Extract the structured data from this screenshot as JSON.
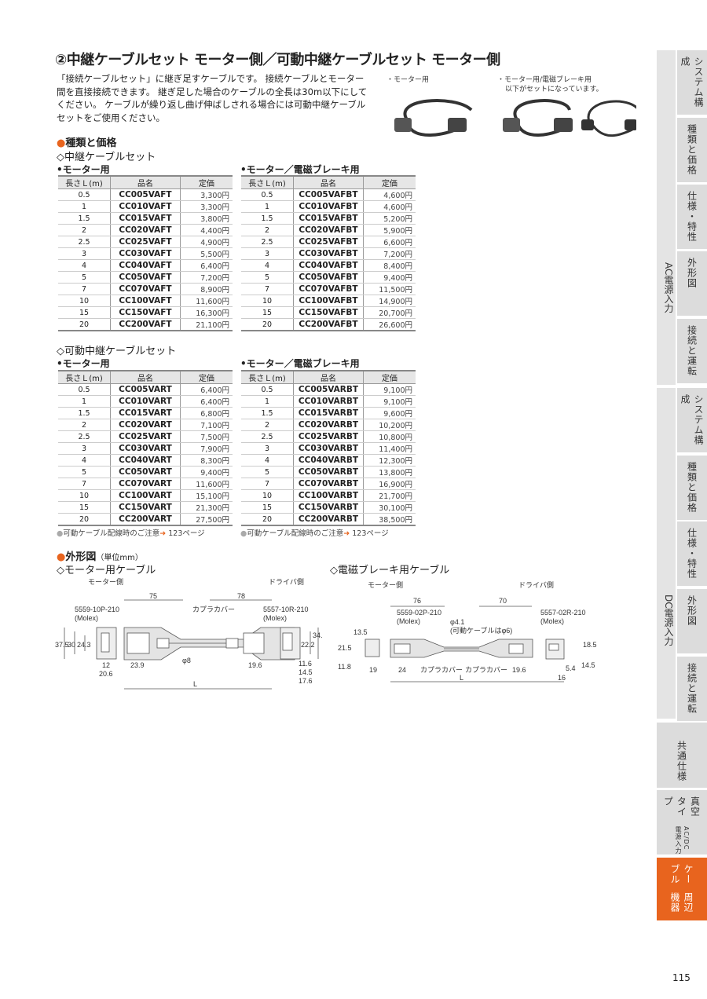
{
  "title": "②中継ケーブルセット モーター側／可動中継ケーブルセット モーター側",
  "intro": "「接続ケーブルセット」に継ぎ足すケーブルです。 接続ケーブルとモーター間を直接接続できます。 継ぎ足した場合のケーブルの全長は30m以下にしてください。 ケーブルが繰り返し曲げ伸ばしされる場合には可動中継ケーブルセットをご使用ください。",
  "photos": {
    "caption1": "・モーター用",
    "caption2a": "・モーター用/電磁ブレーキ用",
    "caption2b": "以下がセットになっています。"
  },
  "section_price": "種類と価格",
  "relay": {
    "heading": "◇中継ケーブルセット",
    "motor_label": "•モーター用",
    "brake_label": "•モーター／電磁ブレーキ用"
  },
  "movable": {
    "heading": "◇可動中継ケーブルセット",
    "motor_label": "•モーター用",
    "brake_label": "•モーター／電磁ブレーキ用"
  },
  "table_headers": [
    "長さＬ(m)",
    "品名",
    "定価"
  ],
  "tables": {
    "relay_motor": [
      [
        "0.5",
        "CC005VAFT",
        "3,300円"
      ],
      [
        "1",
        "CC010VAFT",
        "3,300円"
      ],
      [
        "1.5",
        "CC015VAFT",
        "3,800円"
      ],
      [
        "2",
        "CC020VAFT",
        "4,400円"
      ],
      [
        "2.5",
        "CC025VAFT",
        "4,900円"
      ],
      [
        "3",
        "CC030VAFT",
        "5,500円"
      ],
      [
        "4",
        "CC040VAFT",
        "6,400円"
      ],
      [
        "5",
        "CC050VAFT",
        "7,200円"
      ],
      [
        "7",
        "CC070VAFT",
        "8,900円"
      ],
      [
        "10",
        "CC100VAFT",
        "11,600円"
      ],
      [
        "15",
        "CC150VAFT",
        "16,300円"
      ],
      [
        "20",
        "CC200VAFT",
        "21,100円"
      ]
    ],
    "relay_brake": [
      [
        "0.5",
        "CC005VAFBT",
        "4,600円"
      ],
      [
        "1",
        "CC010VAFBT",
        "4,600円"
      ],
      [
        "1.5",
        "CC015VAFBT",
        "5,200円"
      ],
      [
        "2",
        "CC020VAFBT",
        "5,900円"
      ],
      [
        "2.5",
        "CC025VAFBT",
        "6,600円"
      ],
      [
        "3",
        "CC030VAFBT",
        "7,200円"
      ],
      [
        "4",
        "CC040VAFBT",
        "8,400円"
      ],
      [
        "5",
        "CC050VAFBT",
        "9,400円"
      ],
      [
        "7",
        "CC070VAFBT",
        "11,500円"
      ],
      [
        "10",
        "CC100VAFBT",
        "14,900円"
      ],
      [
        "15",
        "CC150VAFBT",
        "20,700円"
      ],
      [
        "20",
        "CC200VAFBT",
        "26,600円"
      ]
    ],
    "movable_motor": [
      [
        "0.5",
        "CC005VART",
        "6,400円"
      ],
      [
        "1",
        "CC010VART",
        "6,400円"
      ],
      [
        "1.5",
        "CC015VART",
        "6,800円"
      ],
      [
        "2",
        "CC020VART",
        "7,100円"
      ],
      [
        "2.5",
        "CC025VART",
        "7,500円"
      ],
      [
        "3",
        "CC030VART",
        "7,900円"
      ],
      [
        "4",
        "CC040VART",
        "8,300円"
      ],
      [
        "5",
        "CC050VART",
        "9,400円"
      ],
      [
        "7",
        "CC070VART",
        "11,600円"
      ],
      [
        "10",
        "CC100VART",
        "15,100円"
      ],
      [
        "15",
        "CC150VART",
        "21,300円"
      ],
      [
        "20",
        "CC200VART",
        "27,500円"
      ]
    ],
    "movable_brake": [
      [
        "0.5",
        "CC005VARBT",
        "9,100円"
      ],
      [
        "1",
        "CC010VARBT",
        "9,100円"
      ],
      [
        "1.5",
        "CC015VARBT",
        "9,600円"
      ],
      [
        "2",
        "CC020VARBT",
        "10,200円"
      ],
      [
        "2.5",
        "CC025VARBT",
        "10,800円"
      ],
      [
        "3",
        "CC030VARBT",
        "11,400円"
      ],
      [
        "4",
        "CC040VARBT",
        "12,300円"
      ],
      [
        "5",
        "CC050VARBT",
        "13,800円"
      ],
      [
        "7",
        "CC070VARBT",
        "16,900円"
      ],
      [
        "10",
        "CC100VARBT",
        "21,700円"
      ],
      [
        "15",
        "CC150VARBT",
        "30,100円"
      ],
      [
        "20",
        "CC200VARBT",
        "38,500円"
      ]
    ]
  },
  "note": {
    "text": "可動ケーブル配線時のご注意",
    "page": "123ページ"
  },
  "section_dims": "外形図",
  "dims_unit": "（単位mm）",
  "dim1": {
    "heading": "◇モーター用ケーブル",
    "motor_side": "モーター側",
    "driver_side": "ドライバ側",
    "d75": "75",
    "d78": "78",
    "conn_l": "5559-10P-210",
    "molex": "(Molex)",
    "cover": "カプラカバー",
    "conn_r": "5557-10R-210",
    "d375": "37.5",
    "d30": "30",
    "d243": "24.3",
    "d12": "12",
    "d206": "20.6",
    "d239": "23.9",
    "phi8": "φ8",
    "d196": "19.6",
    "d222": "22.2",
    "d345": "34.5",
    "d116": "11.6",
    "d145": "14.5",
    "d176": "17.6",
    "L": "L"
  },
  "dim2": {
    "heading": "◇電磁ブレーキ用ケーブル",
    "motor_side": "モーター側",
    "driver_side": "ドライバ側",
    "d76": "76",
    "d70": "70",
    "conn_l": "5559-02P-210",
    "molex": "(Molex)",
    "phi41": "φ4.1",
    "phi_note": "(可動ケーブルはφ6)",
    "conn_r": "5557-02R-210",
    "d135": "13.5",
    "d215": "21.5",
    "d118": "11.8",
    "d19": "19",
    "d24": "24",
    "cover": "カプラカバー",
    "d196": "19.6",
    "d185": "18.5",
    "d54": "5.4",
    "d145": "14.5",
    "d16": "16",
    "L": "L"
  },
  "sidebar": {
    "ac_group": "AC電源入力",
    "dc_group": "DC電源入力",
    "ac_tabs": [
      "システム構成",
      "種類と価格",
      "仕様・特性",
      "外形図",
      "接続と運転"
    ],
    "dc_tabs": [
      "システム構成",
      "種類と価格",
      "仕様・特性",
      "外形図",
      "接続と運転"
    ],
    "common": "共通仕様",
    "vacuum": "真空タイプ",
    "vacuum_sub": "AC/DC電源入力",
    "cable": "ケーブル",
    "cable_sub": "周辺機器",
    "active_color": "#e8641e"
  },
  "page_number": "115"
}
